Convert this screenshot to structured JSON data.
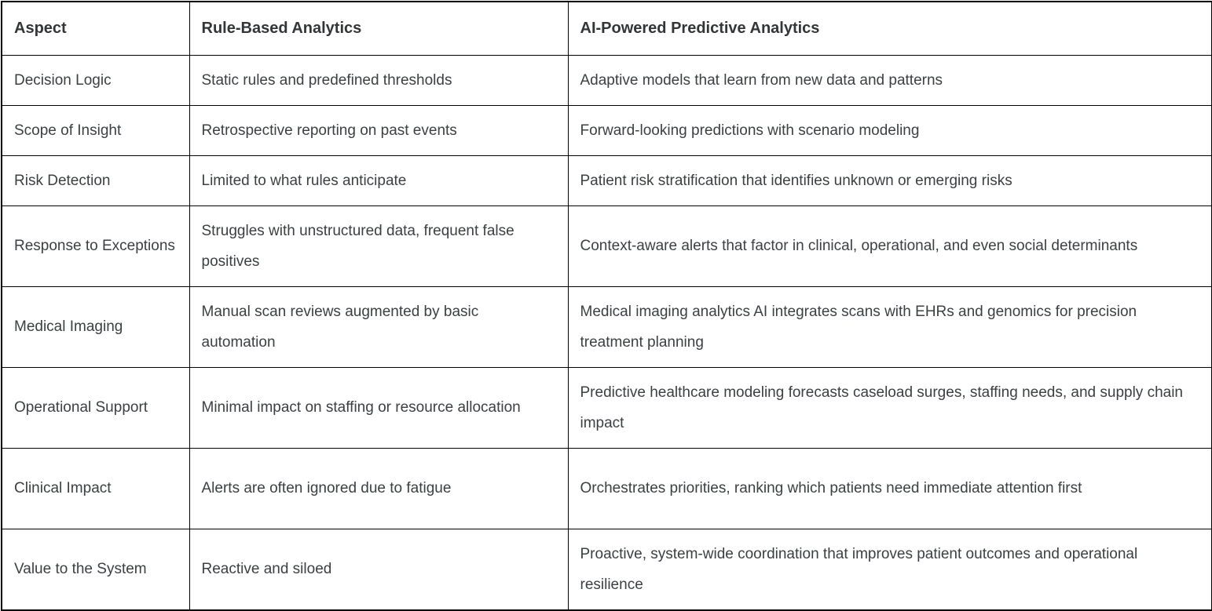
{
  "table": {
    "columns": [
      "Aspect",
      "Rule-Based Analytics",
      "AI-Powered Predictive Analytics"
    ],
    "rows": [
      {
        "aspect": "Decision Logic",
        "rule_based": "Static rules and predefined thresholds",
        "ai_powered": "Adaptive models that learn from new data and patterns"
      },
      {
        "aspect": "Scope of Insight",
        "rule_based": "Retrospective reporting on past events",
        "ai_powered": "Forward-looking predictions with scenario modeling"
      },
      {
        "aspect": "Risk Detection",
        "rule_based": "Limited to what rules anticipate",
        "ai_powered": "Patient risk stratification that identifies unknown or emerging risks"
      },
      {
        "aspect": "Response to Exceptions",
        "rule_based": "Struggles with unstructured data, frequent false positives",
        "ai_powered": "Context-aware alerts that factor in clinical, operational, and even social determinants"
      },
      {
        "aspect": "Medical Imaging",
        "rule_based": "Manual scan reviews augmented by basic automation",
        "ai_powered": "Medical imaging analytics AI integrates scans with EHRs and genomics for precision treatment planning"
      },
      {
        "aspect": "Operational Support",
        "rule_based": "Minimal impact on staffing or resource allocation",
        "ai_powered": "Predictive healthcare modeling forecasts caseload surges, staffing needs, and supply chain impact"
      },
      {
        "aspect": "Clinical Impact",
        "rule_based": "Alerts are often ignored due to fatigue",
        "ai_powered": "Orchestrates priorities, ranking which patients need immediate attention first"
      },
      {
        "aspect": "Value to the System",
        "rule_based": "Reactive and siloed",
        "ai_powered": "Proactive, system-wide coordination that improves patient outcomes and operational resilience"
      }
    ]
  },
  "colors": {
    "text": "#3c4043",
    "header_text": "#333538",
    "border": "#000000",
    "background": "#ffffff"
  }
}
